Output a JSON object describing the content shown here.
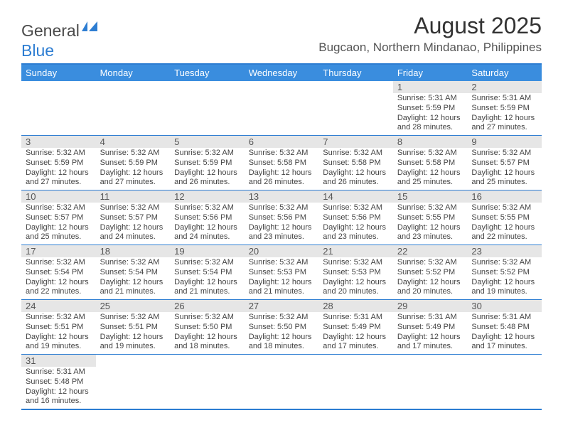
{
  "logo": {
    "part1": "General",
    "part2": "Blue"
  },
  "title": "August 2025",
  "location": "Bugcaon, Northern Mindanao, Philippines",
  "colors": {
    "header_bg": "#3a8dde",
    "border": "#2d7dd2",
    "daynum_bg": "#e6e6e6",
    "text": "#444444"
  },
  "daysOfWeek": [
    "Sunday",
    "Monday",
    "Tuesday",
    "Wednesday",
    "Thursday",
    "Friday",
    "Saturday"
  ],
  "weeks": [
    [
      {
        "n": "",
        "sr": "",
        "ss": "",
        "dl": ""
      },
      {
        "n": "",
        "sr": "",
        "ss": "",
        "dl": ""
      },
      {
        "n": "",
        "sr": "",
        "ss": "",
        "dl": ""
      },
      {
        "n": "",
        "sr": "",
        "ss": "",
        "dl": ""
      },
      {
        "n": "",
        "sr": "",
        "ss": "",
        "dl": ""
      },
      {
        "n": "1",
        "sr": "Sunrise: 5:31 AM",
        "ss": "Sunset: 5:59 PM",
        "dl": "Daylight: 12 hours and 28 minutes."
      },
      {
        "n": "2",
        "sr": "Sunrise: 5:31 AM",
        "ss": "Sunset: 5:59 PM",
        "dl": "Daylight: 12 hours and 27 minutes."
      }
    ],
    [
      {
        "n": "3",
        "sr": "Sunrise: 5:32 AM",
        "ss": "Sunset: 5:59 PM",
        "dl": "Daylight: 12 hours and 27 minutes."
      },
      {
        "n": "4",
        "sr": "Sunrise: 5:32 AM",
        "ss": "Sunset: 5:59 PM",
        "dl": "Daylight: 12 hours and 27 minutes."
      },
      {
        "n": "5",
        "sr": "Sunrise: 5:32 AM",
        "ss": "Sunset: 5:59 PM",
        "dl": "Daylight: 12 hours and 26 minutes."
      },
      {
        "n": "6",
        "sr": "Sunrise: 5:32 AM",
        "ss": "Sunset: 5:58 PM",
        "dl": "Daylight: 12 hours and 26 minutes."
      },
      {
        "n": "7",
        "sr": "Sunrise: 5:32 AM",
        "ss": "Sunset: 5:58 PM",
        "dl": "Daylight: 12 hours and 26 minutes."
      },
      {
        "n": "8",
        "sr": "Sunrise: 5:32 AM",
        "ss": "Sunset: 5:58 PM",
        "dl": "Daylight: 12 hours and 25 minutes."
      },
      {
        "n": "9",
        "sr": "Sunrise: 5:32 AM",
        "ss": "Sunset: 5:57 PM",
        "dl": "Daylight: 12 hours and 25 minutes."
      }
    ],
    [
      {
        "n": "10",
        "sr": "Sunrise: 5:32 AM",
        "ss": "Sunset: 5:57 PM",
        "dl": "Daylight: 12 hours and 25 minutes."
      },
      {
        "n": "11",
        "sr": "Sunrise: 5:32 AM",
        "ss": "Sunset: 5:57 PM",
        "dl": "Daylight: 12 hours and 24 minutes."
      },
      {
        "n": "12",
        "sr": "Sunrise: 5:32 AM",
        "ss": "Sunset: 5:56 PM",
        "dl": "Daylight: 12 hours and 24 minutes."
      },
      {
        "n": "13",
        "sr": "Sunrise: 5:32 AM",
        "ss": "Sunset: 5:56 PM",
        "dl": "Daylight: 12 hours and 23 minutes."
      },
      {
        "n": "14",
        "sr": "Sunrise: 5:32 AM",
        "ss": "Sunset: 5:56 PM",
        "dl": "Daylight: 12 hours and 23 minutes."
      },
      {
        "n": "15",
        "sr": "Sunrise: 5:32 AM",
        "ss": "Sunset: 5:55 PM",
        "dl": "Daylight: 12 hours and 23 minutes."
      },
      {
        "n": "16",
        "sr": "Sunrise: 5:32 AM",
        "ss": "Sunset: 5:55 PM",
        "dl": "Daylight: 12 hours and 22 minutes."
      }
    ],
    [
      {
        "n": "17",
        "sr": "Sunrise: 5:32 AM",
        "ss": "Sunset: 5:54 PM",
        "dl": "Daylight: 12 hours and 22 minutes."
      },
      {
        "n": "18",
        "sr": "Sunrise: 5:32 AM",
        "ss": "Sunset: 5:54 PM",
        "dl": "Daylight: 12 hours and 21 minutes."
      },
      {
        "n": "19",
        "sr": "Sunrise: 5:32 AM",
        "ss": "Sunset: 5:54 PM",
        "dl": "Daylight: 12 hours and 21 minutes."
      },
      {
        "n": "20",
        "sr": "Sunrise: 5:32 AM",
        "ss": "Sunset: 5:53 PM",
        "dl": "Daylight: 12 hours and 21 minutes."
      },
      {
        "n": "21",
        "sr": "Sunrise: 5:32 AM",
        "ss": "Sunset: 5:53 PM",
        "dl": "Daylight: 12 hours and 20 minutes."
      },
      {
        "n": "22",
        "sr": "Sunrise: 5:32 AM",
        "ss": "Sunset: 5:52 PM",
        "dl": "Daylight: 12 hours and 20 minutes."
      },
      {
        "n": "23",
        "sr": "Sunrise: 5:32 AM",
        "ss": "Sunset: 5:52 PM",
        "dl": "Daylight: 12 hours and 19 minutes."
      }
    ],
    [
      {
        "n": "24",
        "sr": "Sunrise: 5:32 AM",
        "ss": "Sunset: 5:51 PM",
        "dl": "Daylight: 12 hours and 19 minutes."
      },
      {
        "n": "25",
        "sr": "Sunrise: 5:32 AM",
        "ss": "Sunset: 5:51 PM",
        "dl": "Daylight: 12 hours and 19 minutes."
      },
      {
        "n": "26",
        "sr": "Sunrise: 5:32 AM",
        "ss": "Sunset: 5:50 PM",
        "dl": "Daylight: 12 hours and 18 minutes."
      },
      {
        "n": "27",
        "sr": "Sunrise: 5:32 AM",
        "ss": "Sunset: 5:50 PM",
        "dl": "Daylight: 12 hours and 18 minutes."
      },
      {
        "n": "28",
        "sr": "Sunrise: 5:31 AM",
        "ss": "Sunset: 5:49 PM",
        "dl": "Daylight: 12 hours and 17 minutes."
      },
      {
        "n": "29",
        "sr": "Sunrise: 5:31 AM",
        "ss": "Sunset: 5:49 PM",
        "dl": "Daylight: 12 hours and 17 minutes."
      },
      {
        "n": "30",
        "sr": "Sunrise: 5:31 AM",
        "ss": "Sunset: 5:48 PM",
        "dl": "Daylight: 12 hours and 17 minutes."
      }
    ],
    [
      {
        "n": "31",
        "sr": "Sunrise: 5:31 AM",
        "ss": "Sunset: 5:48 PM",
        "dl": "Daylight: 12 hours and 16 minutes."
      },
      {
        "n": "",
        "sr": "",
        "ss": "",
        "dl": ""
      },
      {
        "n": "",
        "sr": "",
        "ss": "",
        "dl": ""
      },
      {
        "n": "",
        "sr": "",
        "ss": "",
        "dl": ""
      },
      {
        "n": "",
        "sr": "",
        "ss": "",
        "dl": ""
      },
      {
        "n": "",
        "sr": "",
        "ss": "",
        "dl": ""
      },
      {
        "n": "",
        "sr": "",
        "ss": "",
        "dl": ""
      }
    ]
  ]
}
